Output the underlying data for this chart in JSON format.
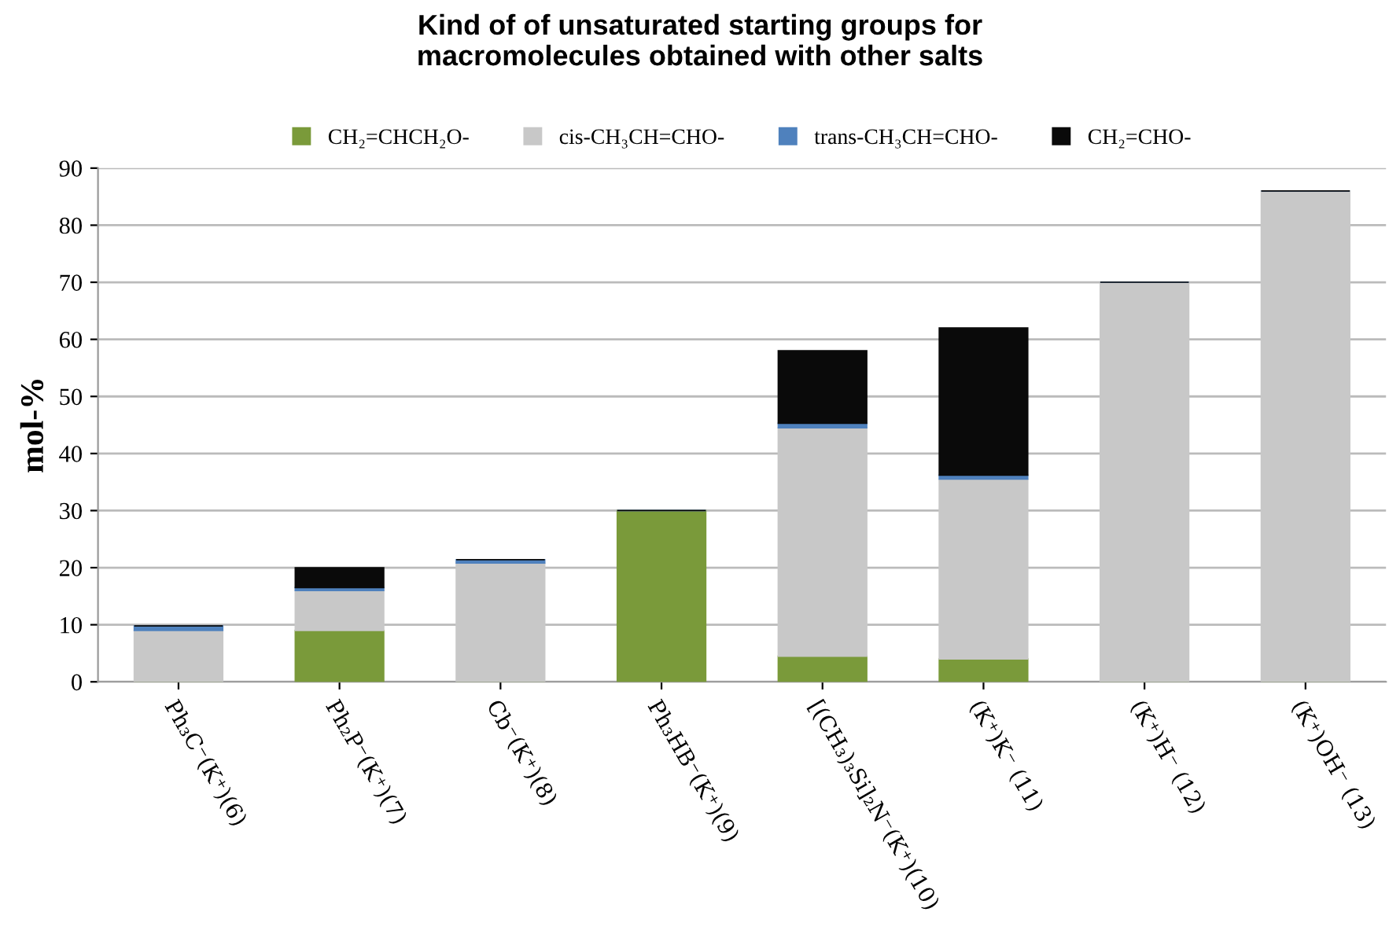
{
  "chart_data": {
    "type": "bar",
    "stacked": true,
    "title": "Kind of of unsaturated starting groups for\nmacromolecules obtained with other salts",
    "ylabel": "mol-%",
    "categories": [
      "Ph₃C⁻(K⁺)(6)",
      "Ph₂P⁻(K⁺)(7)",
      "Cb⁻(K⁺)(8)",
      "Ph₃HB⁻(K⁺)(9)",
      "[(CH₃)₃Si]₂N⁻(K⁺)(10)",
      "(K⁺)K⁻ (11)",
      "(K⁺)H⁻ (12)",
      "(K⁺)OH⁻ (13)"
    ],
    "series": [
      {
        "name": "CH₂=CHCH₂O-",
        "color": "#7a9a3a",
        "values": [
          0,
          9,
          0,
          30,
          4.5,
          4,
          0,
          0
        ]
      },
      {
        "name": "cis-CH₃CH=CHO-",
        "color": "#c8c8c8",
        "values": [
          9,
          7,
          20.8,
          0,
          40,
          31.5,
          70,
          86
        ]
      },
      {
        "name": "trans-CH₃CH=CHO-",
        "color": "#4f81bd",
        "values": [
          0.8,
          0.5,
          0.6,
          0,
          0.8,
          0.7,
          0,
          0
        ]
      },
      {
        "name": "CH₂=CHO-",
        "color": "#0a0a0a",
        "values": [
          0,
          3.5,
          0,
          0,
          12.7,
          25.8,
          0,
          0
        ]
      }
    ],
    "ylim": [
      0,
      90
    ],
    "yticks": [
      0,
      10,
      20,
      30,
      40,
      50,
      60,
      70,
      80,
      90
    ],
    "grid": "y",
    "legend": "top"
  }
}
